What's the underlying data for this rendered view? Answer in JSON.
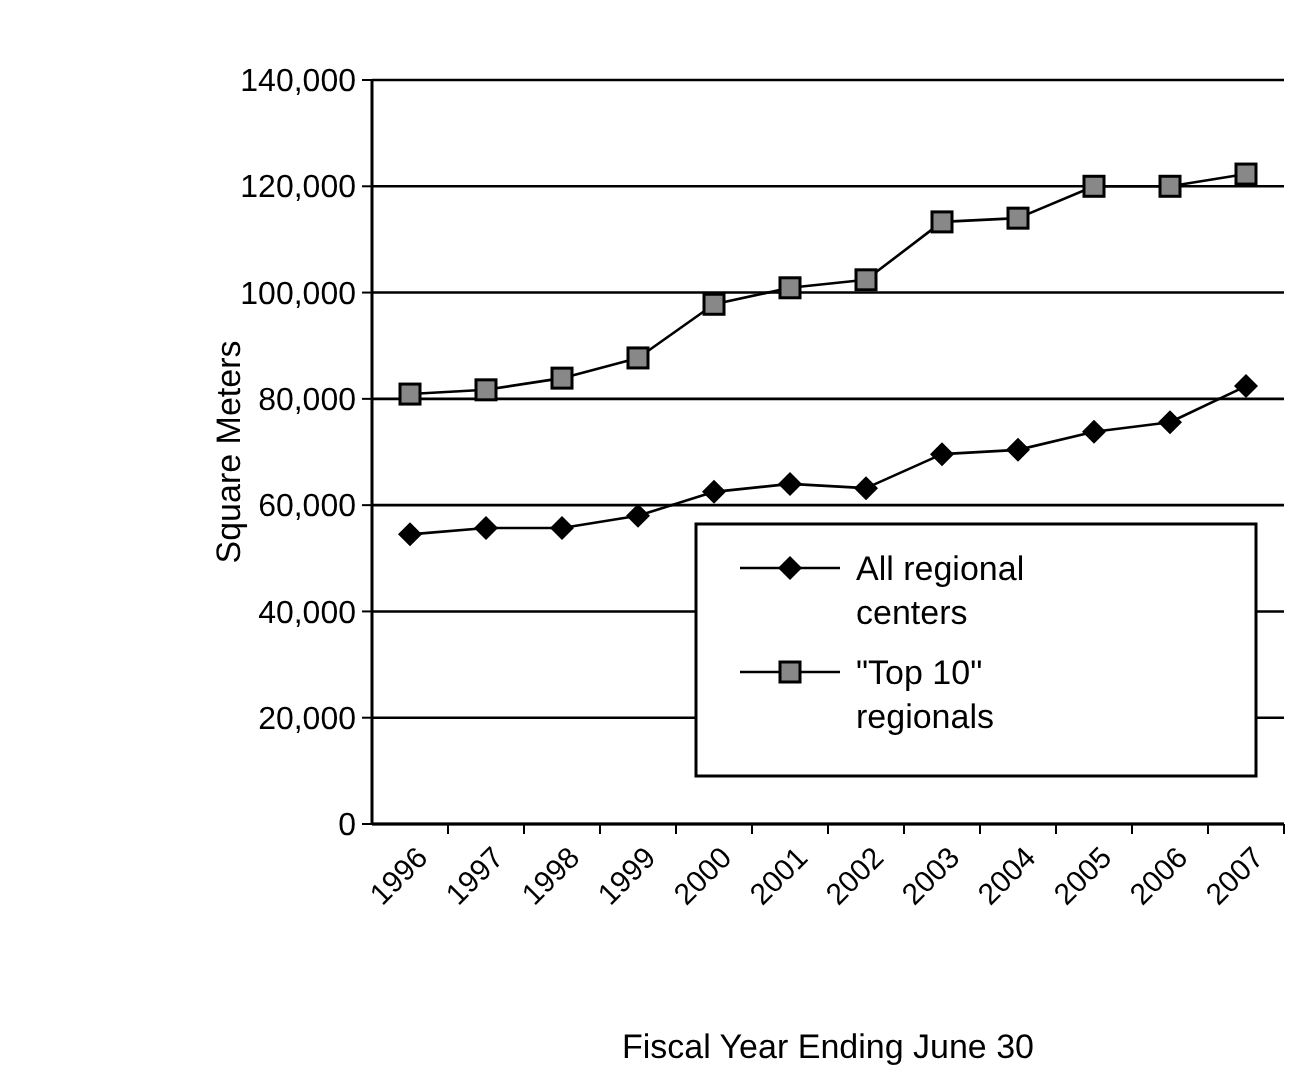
{
  "chart_data": {
    "type": "line",
    "xlabel": "Fiscal Year Ending June 30",
    "ylabel": "Square Meters",
    "categories": [
      "1996",
      "1997",
      "1998",
      "1999",
      "2000",
      "2001",
      "2002",
      "2003",
      "2004",
      "2005",
      "2006",
      "2007"
    ],
    "series": [
      {
        "name": "All regional centers",
        "color": "#000000",
        "marker": "diamond",
        "values": [
          54500,
          55700,
          55700,
          58000,
          62500,
          64000,
          63200,
          69600,
          70400,
          73800,
          75600,
          82400
        ]
      },
      {
        "name": "\"Top 10\" regionals",
        "color": "#000000",
        "marker": "square",
        "values": [
          80900,
          81700,
          83900,
          87700,
          97800,
          100900,
          102400,
          113300,
          114000,
          120000,
          120000,
          122300
        ]
      }
    ],
    "ylim": [
      0,
      140000
    ],
    "yticks": [
      {
        "value": 0,
        "label": "0"
      },
      {
        "value": 20000,
        "label": "20,000"
      },
      {
        "value": 40000,
        "label": "40,000"
      },
      {
        "value": 60000,
        "label": "60,000"
      },
      {
        "value": 80000,
        "label": "80,000"
      },
      {
        "value": 100000,
        "label": "100,000"
      },
      {
        "value": 120000,
        "label": "120,000"
      },
      {
        "value": 140000,
        "label": "140,000"
      }
    ],
    "grid": "y",
    "legend": "bottom right",
    "line_style": "solid"
  }
}
